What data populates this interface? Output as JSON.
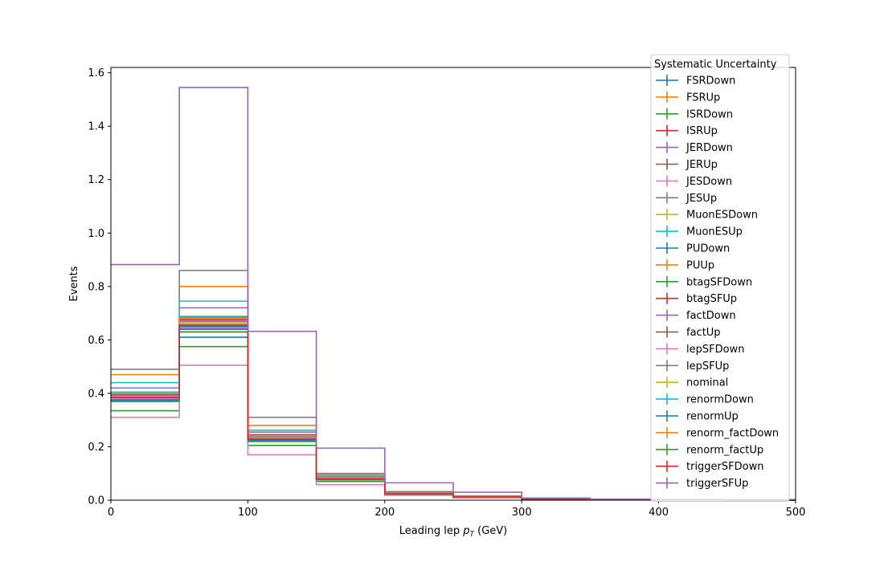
{
  "chart_data": {
    "type": "step-histogram",
    "xlabel_prefix": "Leading lep ",
    "xlabel_var": "p",
    "xlabel_sub": "T",
    "xlabel_suffix": " (GeV)",
    "ylabel": "Events",
    "xlim": [
      0,
      500
    ],
    "ylim": [
      0,
      1.62
    ],
    "xticks": [
      0,
      100,
      200,
      300,
      400,
      500
    ],
    "yticks": [
      0.0,
      0.2,
      0.4,
      0.6,
      0.8,
      1.0,
      1.2,
      1.4,
      1.6
    ],
    "bin_edges": [
      0,
      50,
      100,
      150,
      200,
      250,
      300,
      350,
      400,
      450,
      500
    ],
    "legend_title": "Systematic Uncertainty",
    "legend_position": "upper-right",
    "series": [
      {
        "name": "FSRDown",
        "color": "#1f77b4",
        "values": [
          0.37,
          0.61,
          0.22,
          0.08,
          0.025,
          0.012,
          0.004,
          0.002,
          0.001,
          0.0005
        ]
      },
      {
        "name": "FSRUp",
        "color": "#ff7f0e",
        "values": [
          0.47,
          0.8,
          0.28,
          0.095,
          0.03,
          0.015,
          0.005,
          0.002,
          0.001,
          0.0005
        ]
      },
      {
        "name": "ISRDown",
        "color": "#2ca02c",
        "values": [
          0.335,
          0.575,
          0.205,
          0.07,
          0.022,
          0.011,
          0.004,
          0.002,
          0.001,
          0.0005
        ]
      },
      {
        "name": "ISRUp",
        "color": "#d62728",
        "values": [
          0.405,
          0.685,
          0.245,
          0.085,
          0.026,
          0.013,
          0.004,
          0.002,
          0.001,
          0.0005
        ]
      },
      {
        "name": "JERDown",
        "color": "#9467bd",
        "values": [
          0.42,
          0.72,
          0.255,
          0.088,
          0.027,
          0.013,
          0.005,
          0.002,
          0.001,
          0.0005
        ]
      },
      {
        "name": "JERUp",
        "color": "#8c564b",
        "values": [
          0.38,
          0.63,
          0.225,
          0.078,
          0.024,
          0.012,
          0.004,
          0.002,
          0.001,
          0.0005
        ]
      },
      {
        "name": "JESDown",
        "color": "#e377c2",
        "values": [
          0.31,
          0.505,
          0.17,
          0.058,
          0.018,
          0.009,
          0.003,
          0.001,
          0.0008,
          0.0004
        ]
      },
      {
        "name": "JESUp",
        "color": "#7f7f7f",
        "values": [
          0.49,
          0.86,
          0.31,
          0.1,
          0.032,
          0.016,
          0.006,
          0.002,
          0.001,
          0.0005
        ]
      },
      {
        "name": "MuonESDown",
        "color": "#bcbd22",
        "values": [
          0.39,
          0.66,
          0.232,
          0.08,
          0.025,
          0.012,
          0.004,
          0.002,
          0.001,
          0.0005
        ]
      },
      {
        "name": "MuonESUp",
        "color": "#17becf",
        "values": [
          0.44,
          0.745,
          0.262,
          0.09,
          0.028,
          0.014,
          0.005,
          0.002,
          0.001,
          0.0005
        ]
      },
      {
        "name": "PUDown",
        "color": "#1f77b4",
        "values": [
          0.385,
          0.65,
          0.23,
          0.079,
          0.024,
          0.012,
          0.004,
          0.002,
          0.001,
          0.0005
        ]
      },
      {
        "name": "PUUp",
        "color": "#ff7f0e",
        "values": [
          0.395,
          0.67,
          0.236,
          0.082,
          0.025,
          0.012,
          0.004,
          0.002,
          0.001,
          0.0005
        ]
      },
      {
        "name": "btagSFDown",
        "color": "#2ca02c",
        "values": [
          0.385,
          0.655,
          0.228,
          0.078,
          0.024,
          0.012,
          0.004,
          0.002,
          0.001,
          0.0005
        ]
      },
      {
        "name": "btagSFUp",
        "color": "#d62728",
        "values": [
          0.395,
          0.675,
          0.238,
          0.082,
          0.025,
          0.012,
          0.004,
          0.002,
          0.001,
          0.0005
        ]
      },
      {
        "name": "factDown",
        "color": "#9467bd",
        "values": [
          0.392,
          0.668,
          0.234,
          0.081,
          0.025,
          0.012,
          0.004,
          0.002,
          0.001,
          0.0005
        ]
      },
      {
        "name": "factUp",
        "color": "#8c564b",
        "values": [
          0.38,
          0.64,
          0.226,
          0.078,
          0.024,
          0.012,
          0.004,
          0.002,
          0.001,
          0.0005
        ]
      },
      {
        "name": "lepSFDown",
        "color": "#e377c2",
        "values": [
          0.38,
          0.645,
          0.227,
          0.078,
          0.024,
          0.012,
          0.004,
          0.002,
          0.001,
          0.0005
        ]
      },
      {
        "name": "lepSFUp",
        "color": "#7f7f7f",
        "values": [
          0.398,
          0.678,
          0.238,
          0.082,
          0.025,
          0.012,
          0.004,
          0.002,
          0.001,
          0.0005
        ]
      },
      {
        "name": "nominal",
        "color": "#bcbd22",
        "values": [
          0.388,
          0.662,
          0.232,
          0.08,
          0.025,
          0.012,
          0.004,
          0.002,
          0.001,
          0.0005
        ]
      },
      {
        "name": "renormDown",
        "color": "#17becf",
        "values": [
          0.405,
          0.688,
          0.242,
          0.083,
          0.026,
          0.013,
          0.004,
          0.002,
          0.001,
          0.0005
        ]
      },
      {
        "name": "renormUp",
        "color": "#1f77b4",
        "values": [
          0.375,
          0.64,
          0.224,
          0.077,
          0.024,
          0.012,
          0.004,
          0.002,
          0.001,
          0.0005
        ]
      },
      {
        "name": "renorm_factDown",
        "color": "#ff7f0e",
        "values": [
          0.4,
          0.682,
          0.24,
          0.083,
          0.026,
          0.013,
          0.004,
          0.002,
          0.001,
          0.0005
        ]
      },
      {
        "name": "renorm_factUp",
        "color": "#2ca02c",
        "values": [
          0.37,
          0.63,
          0.22,
          0.076,
          0.023,
          0.011,
          0.004,
          0.002,
          0.001,
          0.0005
        ]
      },
      {
        "name": "triggerSFDown",
        "color": "#d62728",
        "values": [
          0.385,
          0.655,
          0.229,
          0.079,
          0.024,
          0.012,
          0.004,
          0.002,
          0.001,
          0.0005
        ]
      },
      {
        "name": "triggerSFUp",
        "color": "#9467bd",
        "values": [
          0.882,
          1.545,
          0.632,
          0.195,
          0.065,
          0.03,
          0.008,
          0.004,
          0.003,
          0.002
        ]
      }
    ]
  }
}
